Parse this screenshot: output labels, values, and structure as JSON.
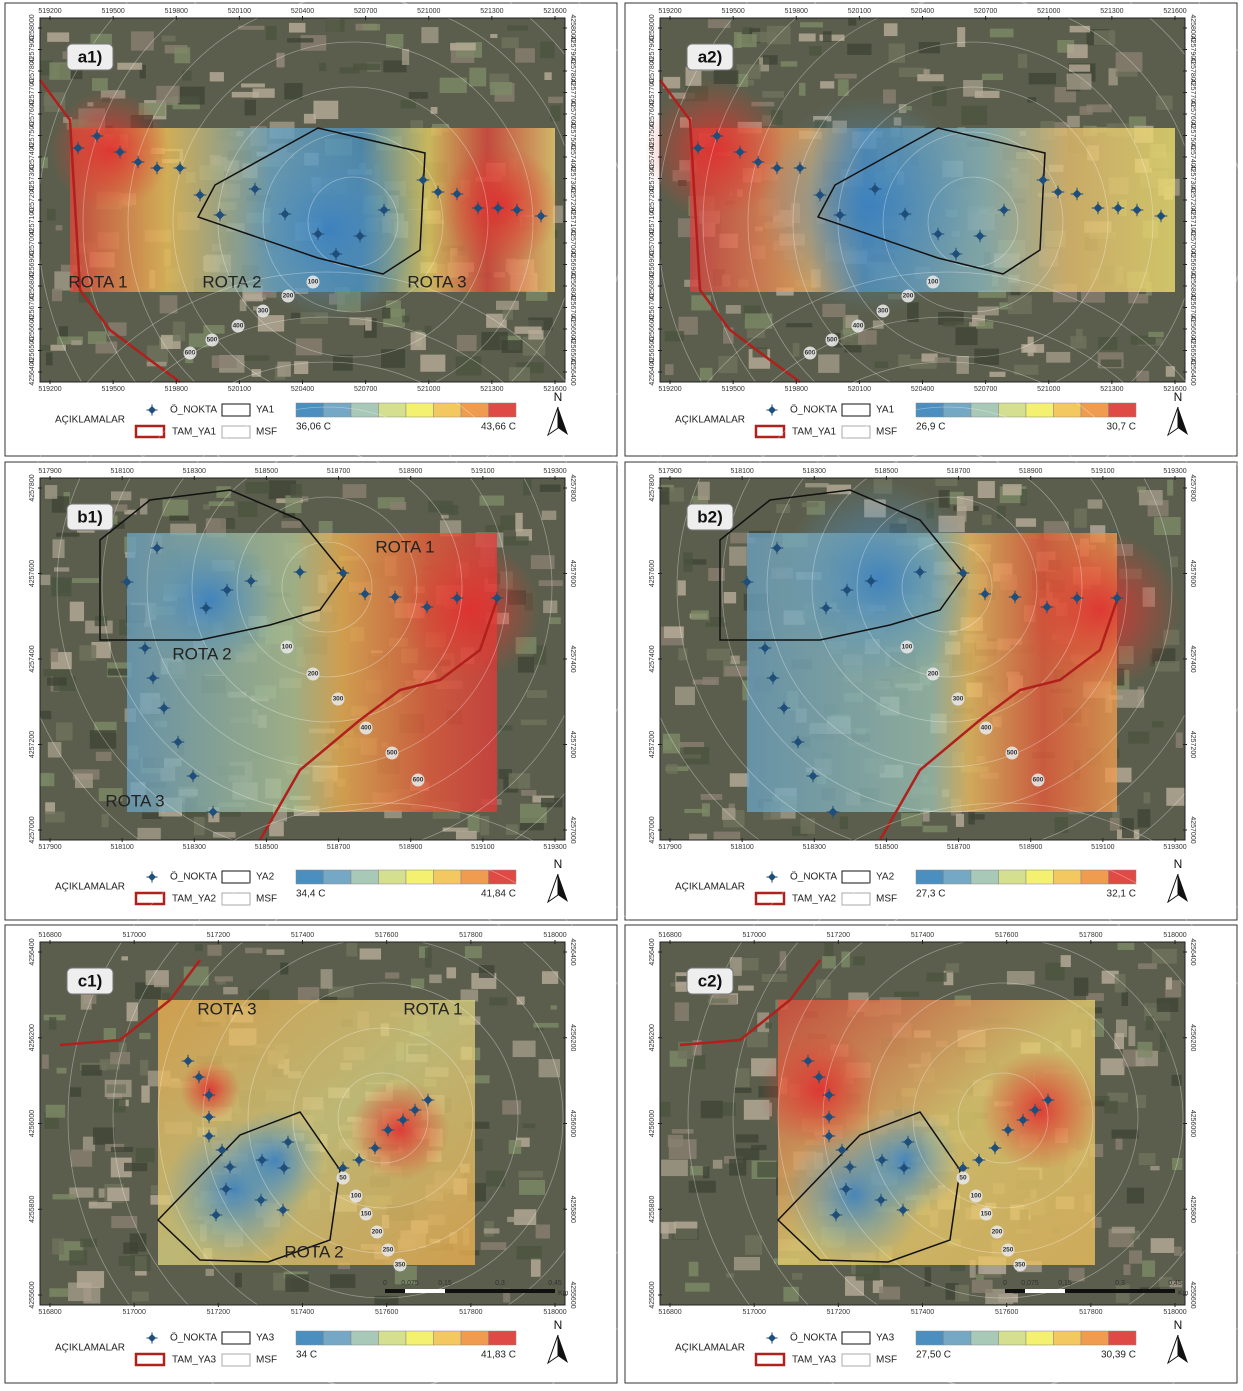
{
  "panels": [
    {
      "label": "a1)",
      "x_ticks": [
        519200,
        519500,
        519800,
        520100,
        520400,
        520700,
        521000,
        521300,
        521600
      ],
      "y_ticks": [
        4258000,
        4257900,
        4257800,
        4257700,
        4257600,
        4257500,
        4257400,
        4257300,
        4257200,
        4257100,
        4257000,
        4256900,
        4256800,
        4256700,
        4256600,
        4256500,
        4256400
      ],
      "routes": [
        "ROTA 1",
        "ROTA 2",
        "ROTA 3"
      ],
      "distances": [
        "100",
        "200",
        "300",
        "400",
        "500",
        "600"
      ],
      "legend": {
        "title": "AÇIKLAMALAR",
        "point": "Ö_NOKTA",
        "area": "YA1",
        "boundary": "TAM_YA1",
        "msf": "MSF",
        "min": "36,06 C",
        "max": "43,66 C",
        "north": "N"
      }
    },
    {
      "label": "a2)",
      "x_ticks": [
        519200,
        519500,
        519800,
        520100,
        520400,
        520700,
        521000,
        521300,
        521600
      ],
      "y_ticks": [
        4258000,
        4257900,
        4257800,
        4257700,
        4257600,
        4257500,
        4257400,
        4257300,
        4257200,
        4257100,
        4257000,
        4256900,
        4256800,
        4256700,
        4256600,
        4256500,
        4256400
      ],
      "distances": [
        "100",
        "200",
        "300",
        "400",
        "500",
        "600"
      ],
      "legend": {
        "title": "AÇIKLAMALAR",
        "point": "Ö_NOKTA",
        "area": "YA1",
        "boundary": "TAM_YA1",
        "msf": "MSF",
        "min": "26,9  C",
        "max": "30,7 C",
        "north": "N"
      }
    },
    {
      "label": "b1)",
      "x_ticks": [
        517900,
        518100,
        518300,
        518500,
        518700,
        518900,
        519100,
        519300
      ],
      "y_ticks": [
        4257800,
        4257600,
        4257400,
        4257200,
        4257000
      ],
      "routes": [
        "ROTA 1",
        "ROTA 2",
        "ROTA 3"
      ],
      "distances": [
        "100",
        "200",
        "300",
        "400",
        "500",
        "600"
      ],
      "legend": {
        "title": "AÇIKLAMALAR",
        "point": "Ö_NOKTA",
        "area": "YA2",
        "boundary": "TAM_YA2",
        "msf": "MSF",
        "min": "34,4 C",
        "max": "41,84 C",
        "north": "N"
      }
    },
    {
      "label": "b2)",
      "x_ticks": [
        517900,
        518100,
        518300,
        518500,
        518700,
        518900,
        519100,
        519300
      ],
      "y_ticks": [
        4257800,
        4257600,
        4257400,
        4257200,
        4257000
      ],
      "distances": [
        "100",
        "200",
        "300",
        "400",
        "500",
        "600"
      ],
      "legend": {
        "title": "AÇIKLAMALAR",
        "point": "Ö_NOKTA",
        "area": "YA2",
        "boundary": "TAM_YA2",
        "msf": "MSF",
        "min": "27,3 C",
        "max": "32,1 C",
        "north": "N"
      }
    },
    {
      "label": "c1)",
      "x_ticks": [
        516800,
        517000,
        517200,
        517400,
        517600,
        517800,
        518000
      ],
      "y_ticks": [
        4256400,
        4256200,
        4256000,
        4255800,
        4255600
      ],
      "routes": [
        "ROTA 1",
        "ROTA 2",
        "ROTA 3"
      ],
      "distances": [
        "50",
        "100",
        "150",
        "200",
        "250",
        "350"
      ],
      "scale": [
        "0",
        "0,075",
        "0,15",
        "0,3",
        "0,45",
        "Km"
      ],
      "legend": {
        "title": "AÇIKLAMALAR",
        "point": "Ö_NOKTA",
        "area": "YA3",
        "boundary": "TAM_YA3",
        "msf": "MSF",
        "min": "34 C",
        "max": "41,83 C",
        "north": "N"
      }
    },
    {
      "label": "c2)",
      "x_ticks": [
        516800,
        517000,
        517200,
        517400,
        517600,
        517800,
        518000
      ],
      "y_ticks": [
        4256400,
        4256200,
        4256000,
        4255800,
        4255600
      ],
      "distances": [
        "50",
        "100",
        "150",
        "200",
        "250",
        "350"
      ],
      "scale": [
        "0",
        "0,075",
        "0,15",
        "0,3",
        "0,45",
        "Km"
      ],
      "legend": {
        "title": "AÇIKLAMALAR",
        "point": "Ö_NOKTA",
        "area": "YA3",
        "boundary": "TAM_YA3",
        "msf": "MSF",
        "min": "27,50 C",
        "max": "30,39 C",
        "north": "N"
      }
    }
  ]
}
